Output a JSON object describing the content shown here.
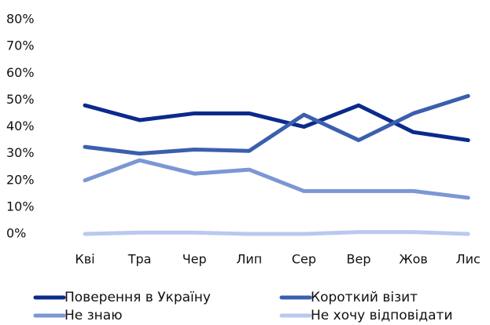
{
  "chart_data": {
    "type": "line",
    "categories": [
      "Кві",
      "Тра",
      "Чер",
      "Лип",
      "Сер",
      "Вер",
      "Жов",
      "Лис"
    ],
    "series": [
      {
        "name": "Поверення в Україну",
        "color": "#0b2a8c",
        "values": [
          48,
          42.5,
          45,
          45,
          40,
          48,
          38,
          35
        ]
      },
      {
        "name": "Короткий візит",
        "color": "#3b5fae",
        "values": [
          32.5,
          30,
          31.5,
          31,
          44.5,
          35,
          45,
          51.5
        ]
      },
      {
        "name": "Не знаю",
        "color": "#7b97d4",
        "values": [
          20,
          27.5,
          22.5,
          24,
          16,
          16,
          16,
          13.5
        ]
      },
      {
        "name": "Не хочу відповідати",
        "color": "#b9c9ee",
        "values": [
          0,
          0.5,
          0.5,
          0,
          0,
          0.7,
          0.7,
          0
        ]
      }
    ],
    "ylim": [
      0,
      80
    ],
    "yticks": [
      {
        "value": 0,
        "label": "0%"
      },
      {
        "value": 10,
        "label": "10%"
      },
      {
        "value": 20,
        "label": "20%"
      },
      {
        "value": 30,
        "label": "30%"
      },
      {
        "value": 40,
        "label": "40%"
      },
      {
        "value": 50,
        "label": "50%"
      },
      {
        "value": 60,
        "label": "60%"
      },
      {
        "value": 70,
        "label": "70%"
      },
      {
        "value": 80,
        "label": "80%"
      }
    ],
    "grid": false,
    "legend": "bottom"
  }
}
